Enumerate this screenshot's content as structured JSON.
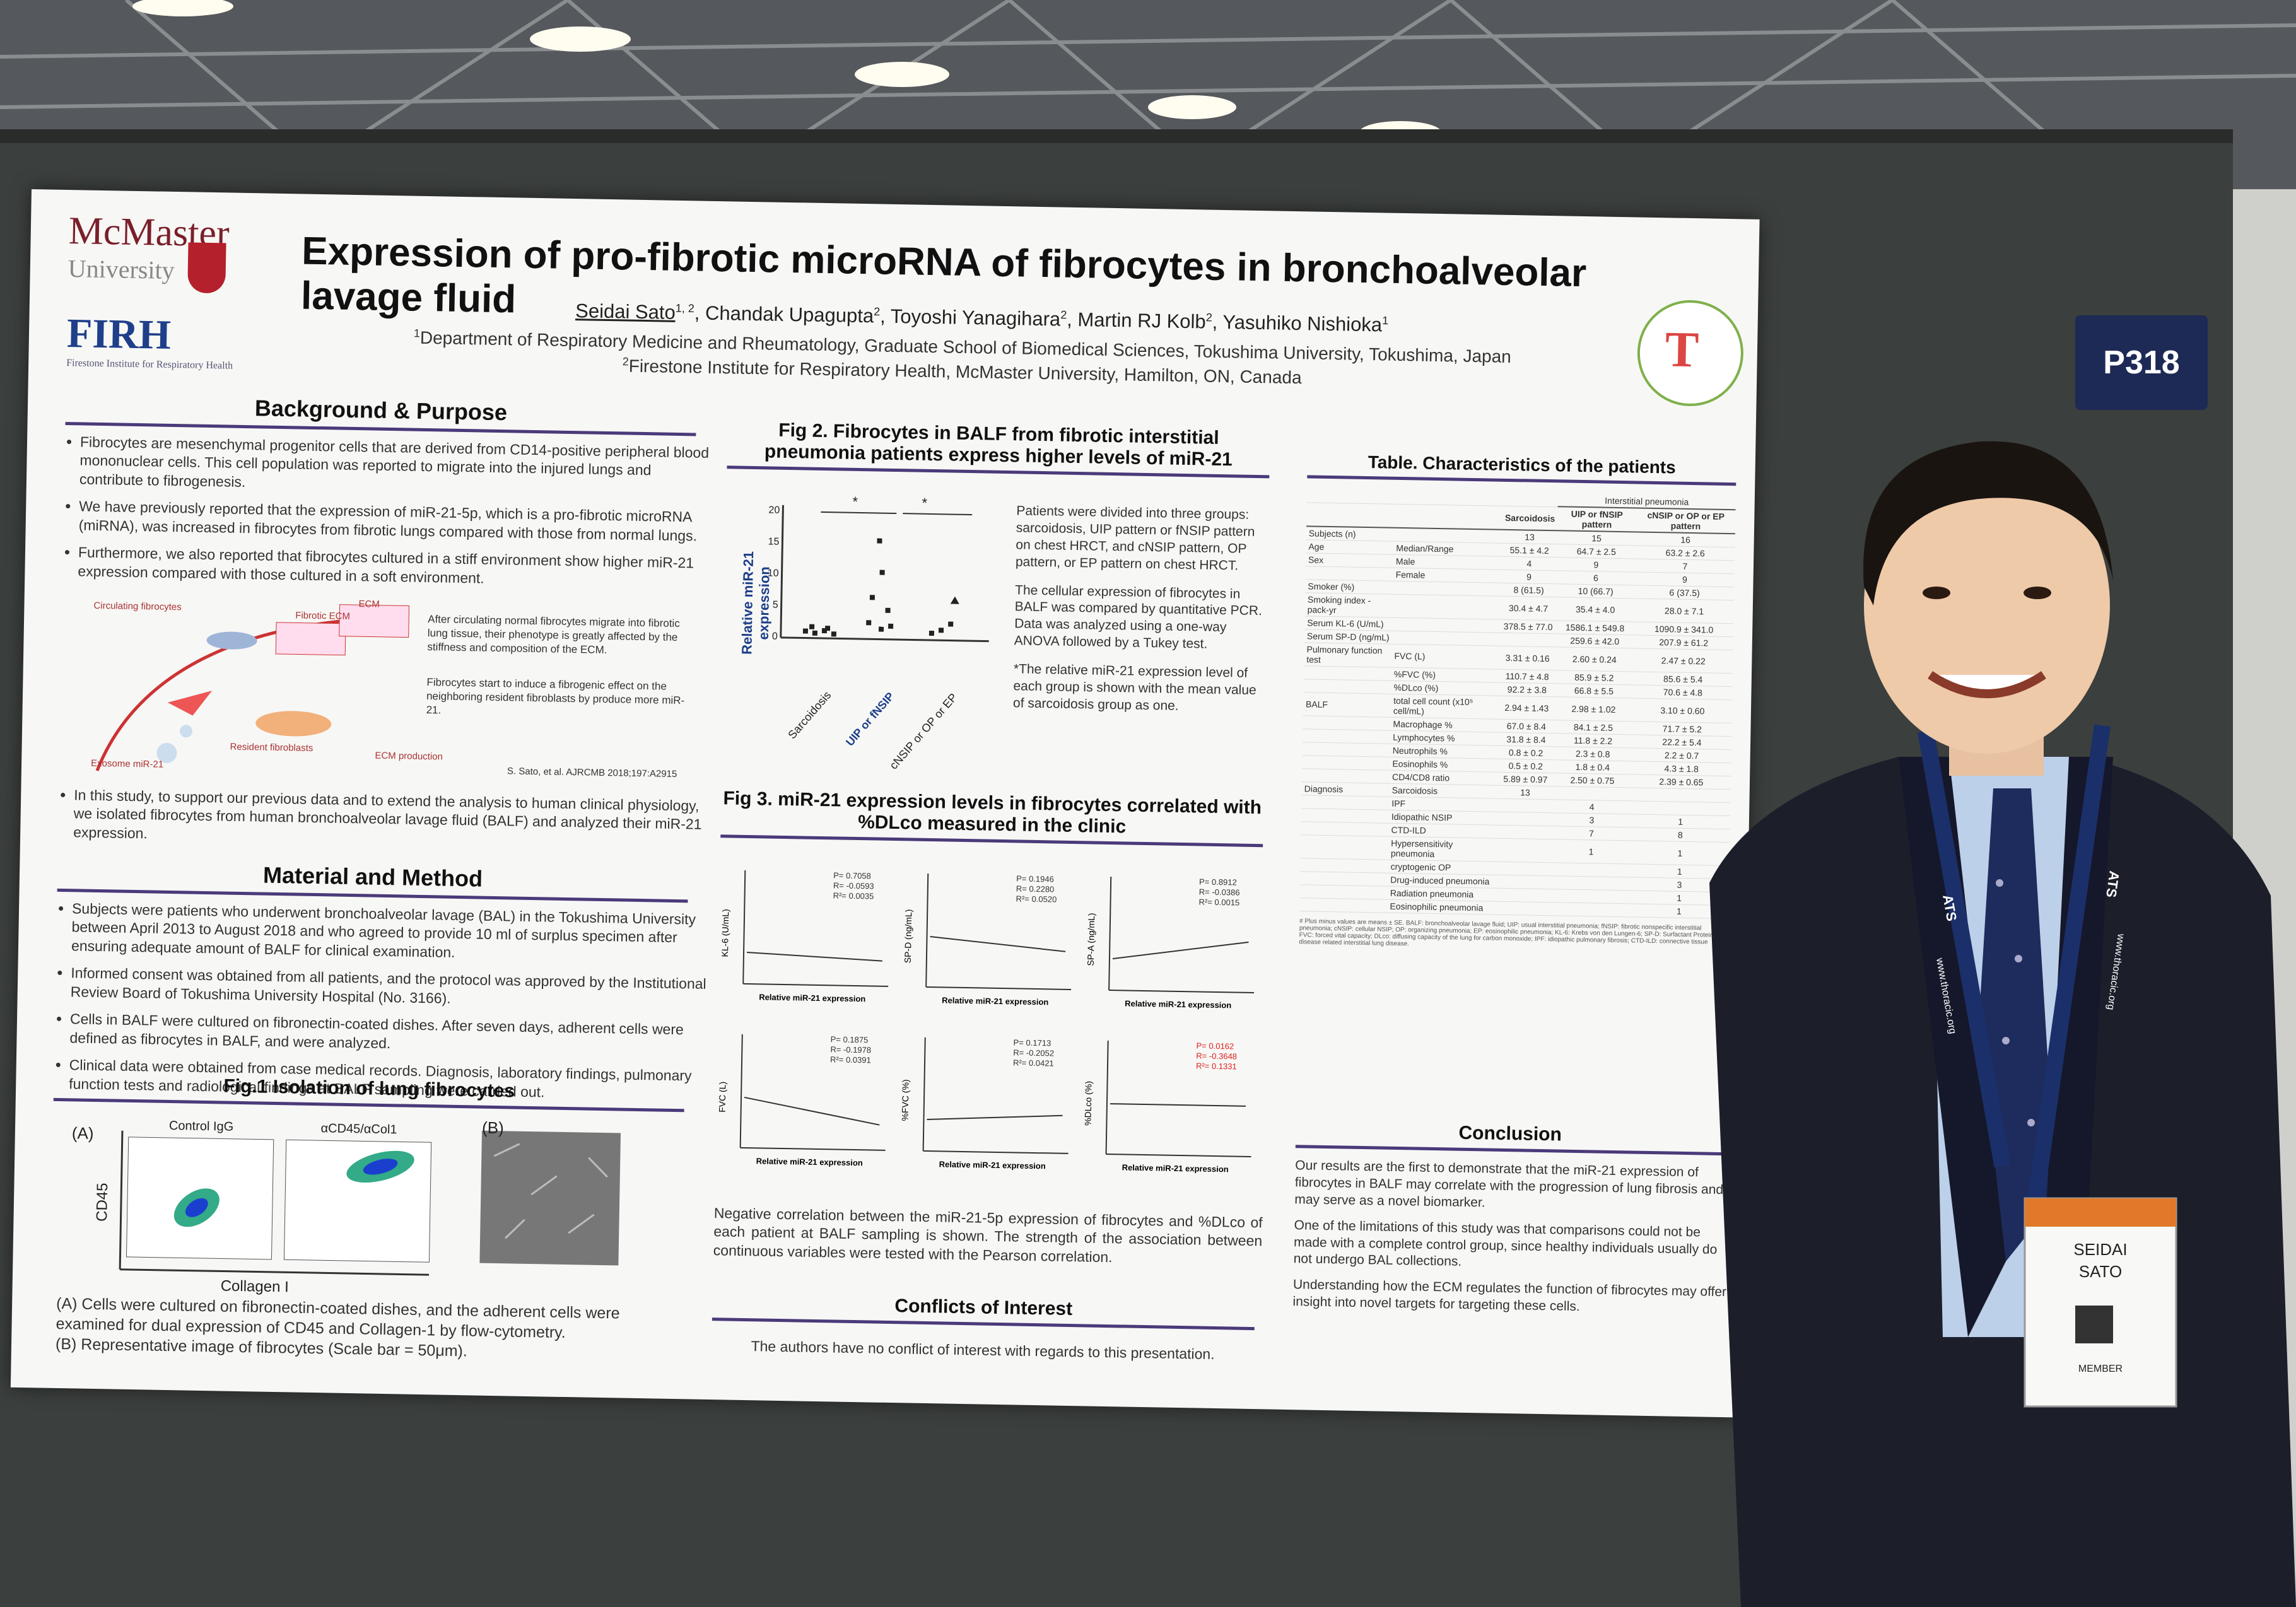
{
  "board_label": "P318",
  "poster": {
    "logos": {
      "mcmaster": "McMaster",
      "mcmaster_sub": "University",
      "firh": "FIRH",
      "firh_sub": "Firestone Institute for Respiratory Health"
    },
    "title": "Expression of pro-fibrotic microRNA of fibrocytes in bronchoalveolar lavage fluid",
    "authors": [
      {
        "name": "Seidai Sato",
        "sup": "1, 2"
      },
      {
        "name": "Chandak Upagupta",
        "sup": "2"
      },
      {
        "name": "Toyoshi Yanagihara",
        "sup": "2"
      },
      {
        "name": "Martin RJ Kolb",
        "sup": "2"
      },
      {
        "name": "Yasuhiko Nishioka",
        "sup": "1"
      }
    ],
    "affiliations": [
      {
        "sup": "1",
        "text": "Department of Respiratory Medicine and Rheumatology, Graduate School of Biomedical Sciences, Tokushima University, Tokushima, Japan"
      },
      {
        "sup": "2",
        "text": "Firestone Institute for Respiratory Health, McMaster University, Hamilton, ON, Canada"
      }
    ],
    "background": {
      "heading": "Background & Purpose",
      "bullets": [
        "Fibrocytes are mesenchymal progenitor cells that are derived from CD14-positive peripheral blood mononuclear cells. This cell population was reported to migrate into the injured lungs and contribute to fibrogenesis.",
        "We have previously reported that the expression of miR-21-5p, which is a pro-fibrotic microRNA (miRNA), was increased in fibrocytes from fibrotic lungs compared with those from normal lungs.",
        "Furthermore, we also reported that fibrocytes cultured in a stiff environment show higher miR-21 expression compared with those cultured in a soft environment."
      ],
      "diagram": {
        "labels": [
          "Circulating fibrocytes",
          "Fibrotic ECM",
          "ECM",
          "Resident fibroblasts",
          "Exosome miR-21",
          "ECM production"
        ],
        "notes": [
          "After circulating normal fibrocytes migrate into fibrotic lung tissue, their phenotype is greatly affected by the stiffness and composition of the ECM.",
          "Fibrocytes start to induce a fibrogenic effect on the neighboring resident fibroblasts by produce more miR-21."
        ],
        "reference": "S. Sato, et al. AJRCMB 2018;197:A2915"
      },
      "aim": "In this study, to support our previous data and to extend the analysis to human clinical physiology, we isolated fibrocytes from human bronchoalveolar lavage fluid (BALF) and analyzed their miR-21 expression."
    },
    "methods": {
      "heading": "Material and Method",
      "bullets": [
        "Subjects were patients who underwent bronchoalveolar lavage (BAL) in the Tokushima University between April 2013 to August 2018 and who agreed to provide 10 ml of surplus specimen after ensuring adequate amount of BALF for clinical examination.",
        "Informed consent was obtained from all patients, and the protocol was approved by the Institutional Review Board of Tokushima University Hospital (No. 3166).",
        "Cells in BALF were cultured on fibronectin-coated dishes. After seven days, adherent cells were defined as fibrocytes in BALF, and were analyzed.",
        "Clinical data were obtained from case medical records. Diagnosis, laboratory findings, pulmonary function tests and radiological findings at BALF sampling were carried out."
      ]
    },
    "fig1": {
      "title": "Fig.1 Isolation of lung fibrocytes",
      "panel_a": "(A)",
      "panel_b": "(B)",
      "plot_titles": [
        "Control IgG",
        "αCD45/αCol1"
      ],
      "y_label": "CD45",
      "x_label": "Collagen I",
      "caption": [
        "(A) Cells were cultured on fibronectin-coated dishes, and the adherent cells were examined for dual expression of CD45 and Collagen-1 by flow-cytometry.",
        "(B) Representative image of fibrocytes (Scale bar = 50μm)."
      ]
    },
    "fig2": {
      "title": "Fig 2. Fibrocytes in BALF from fibrotic interstitial pneumonia patients express higher levels of miR-21",
      "y_label": "Relative miR-21 expression",
      "yticks": [
        "0",
        "5",
        "10",
        "15",
        "20"
      ],
      "categories": [
        "Sarcoidosis",
        "UIP or fNSIP",
        "cNSIP or OP or EP"
      ],
      "significance": [
        "*",
        "*"
      ],
      "text": [
        "Patients were divided into three groups: sarcoidosis, UIP pattern or fNSIP pattern on chest HRCT, and cNSIP pattern, OP pattern, or EP pattern on chest HRCT.",
        "The cellular expression of fibrocytes in BALF was compared by quantitative PCR. Data was analyzed using a one-way ANOVA followed by a Tukey test.",
        "*The relative miR-21 expression level of each group is shown with the mean value of sarcoidosis group as one."
      ]
    },
    "fig3": {
      "title": "Fig 3. miR-21 expression levels in fibrocytes correlated with %DLco measured in the clinic",
      "x_label": "Relative miR-21 expression",
      "plots": [
        {
          "y_label": "KL-6 (U/mL)",
          "stats": [
            "P= 0.7058",
            "R= -0.0593",
            "R²= 0.0035"
          ]
        },
        {
          "y_label": "SP-D (ng/mL)",
          "stats": [
            "P= 0.1946",
            "R= 0.2280",
            "R²= 0.0520"
          ]
        },
        {
          "y_label": "SP-A (ng/mL)",
          "stats": [
            "P= 0.8912",
            "R= -0.0386",
            "R²= 0.0015"
          ]
        },
        {
          "y_label": "FVC (L)",
          "stats": [
            "P= 0.1875",
            "R= -0.1978",
            "R²= 0.0391"
          ]
        },
        {
          "y_label": "%FVC (%)",
          "stats": [
            "P= 0.1713",
            "R= -0.2052",
            "R²= 0.0421"
          ]
        },
        {
          "y_label": "%DLco (%)",
          "stats": [
            "P= 0.0162",
            "R= -0.3648",
            "R²= 0.1331"
          ],
          "highlight": "#d22"
        }
      ],
      "caption": "Negative correlation between the miR-21-5p expression of fibrocytes and %DLco of each patient at BALF sampling is shown. The strength of the association between continuous variables were tested with the Pearson correlation."
    },
    "table": {
      "title": "Table. Characteristics of the patients",
      "group_header": "Interstitial pneumonia",
      "columns": [
        "Sarcoidosis",
        "UIP or fNSIP pattern",
        "cNSIP or OP or EP pattern"
      ],
      "rows": [
        [
          "Subjects (n)",
          null,
          "13",
          "15",
          "16"
        ],
        [
          "Age",
          "Median/Range",
          "55.1 ± 4.2",
          "64.7 ± 2.5",
          "63.2 ± 2.6"
        ],
        [
          "Sex",
          "Male",
          "4",
          "9",
          "7"
        ],
        [
          null,
          "Female",
          "9",
          "6",
          "9"
        ],
        [
          "Smoker (%)",
          null,
          "8 (61.5)",
          "10 (66.7)",
          "6 (37.5)"
        ],
        [
          "Smoking index -pack-yr",
          null,
          "30.4 ± 4.7",
          "35.4 ± 4.0",
          "28.0 ± 7.1"
        ],
        [
          "Serum KL-6 (U/mL)",
          null,
          "378.5 ± 77.0",
          "1586.1 ± 549.8",
          "1090.9 ± 341.0"
        ],
        [
          "Serum SP-D (ng/mL)",
          null,
          null,
          "259.6 ± 42.0",
          "207.9 ± 61.2"
        ],
        [
          "Pulmonary function test",
          "FVC (L)",
          "3.31 ± 0.16",
          "2.60 ± 0.24",
          "2.47 ± 0.22"
        ],
        [
          null,
          "%FVC (%)",
          "110.7 ± 4.8",
          "85.9 ± 5.2",
          "85.6 ± 5.4"
        ],
        [
          null,
          "%DLco (%)",
          "92.2 ± 3.8",
          "66.8 ± 5.5",
          "70.6 ± 4.8"
        ],
        [
          "BALF",
          "total cell count (x10⁵ cell/mL)",
          "2.94 ± 1.43",
          "2.98 ± 1.02",
          "3.10 ± 0.60"
        ],
        [
          null,
          "Macrophage %",
          "67.0 ± 8.4",
          "84.1 ± 2.5",
          "71.7 ± 5.2"
        ],
        [
          null,
          "Lymphocytes %",
          "31.8 ± 8.4",
          "11.8 ± 2.2",
          "22.2 ± 5.4"
        ],
        [
          null,
          "Neutrophils %",
          "0.8 ± 0.2",
          "2.3 ± 0.8",
          "2.2 ± 0.7"
        ],
        [
          null,
          "Eosinophils %",
          "0.5 ± 0.2",
          "1.8 ± 0.4",
          "4.3 ± 1.8"
        ],
        [
          null,
          "CD4/CD8 ratio",
          "5.89 ± 0.97",
          "2.50 ± 0.75",
          "2.39 ± 0.65"
        ],
        [
          "Diagnosis",
          "Sarcoidosis",
          "13",
          null,
          null
        ],
        [
          null,
          "IPF",
          null,
          "4",
          null
        ],
        [
          null,
          "Idiopathic NSIP",
          null,
          "3",
          "1"
        ],
        [
          null,
          "CTD-ILD",
          null,
          "7",
          "8"
        ],
        [
          null,
          "Hypersensitivity pneumonia",
          null,
          "1",
          "1"
        ],
        [
          null,
          "cryptogenic OP",
          null,
          null,
          "1"
        ],
        [
          null,
          "Drug-induced pneumonia",
          null,
          null,
          "3"
        ],
        [
          null,
          "Radiation pneumonia",
          null,
          null,
          "1"
        ],
        [
          null,
          "Eosinophilic pneumonia",
          null,
          null,
          "1"
        ]
      ],
      "footnote": "# Plus minus values are means ± SE. BALF: bronchoalveolar lavage fluid; UIP: usual interstitial pneumonia; fNSIP: fibrotic nonspecific interstitial pneumonia; cNSIP: cellular NSIP; OP: organizing pneumonia; EP: eosinophilic pneumonia; KL-6: Krebs von den Lungen-6; SP-D: Surfactant Protein-D; FVC: forced vital capacity; DLco: diffusing capacity of the lung for carbon monoxide; IPF: idiopathic pulmonary fibrosis; CTD-ILD: connective tissue disease related interstitial lung disease."
    },
    "conclusion": {
      "heading": "Conclusion",
      "paragraphs": [
        "Our results are the first to demonstrate that the miR-21 expression of fibrocytes in BALF may correlate with the progression of lung fibrosis and may serve as a novel biomarker.",
        "One of the limitations of this study was that comparisons could not be made with a complete control group, since healthy individuals usually do not undergo BAL collections.",
        "Understanding how the ECM regulates the function of fibrocytes may offer insight into novel targets for targeting these cells."
      ]
    },
    "conflicts": {
      "heading": "Conflicts of Interest",
      "text": "The authors have no conflict of interest with regards to this presentation."
    }
  },
  "lanyard": {
    "brand": "ATS",
    "url": "www.thoracic.org"
  },
  "badge": {
    "first": "SEIDAI",
    "last": "SATO",
    "member": "MEMBER"
  }
}
